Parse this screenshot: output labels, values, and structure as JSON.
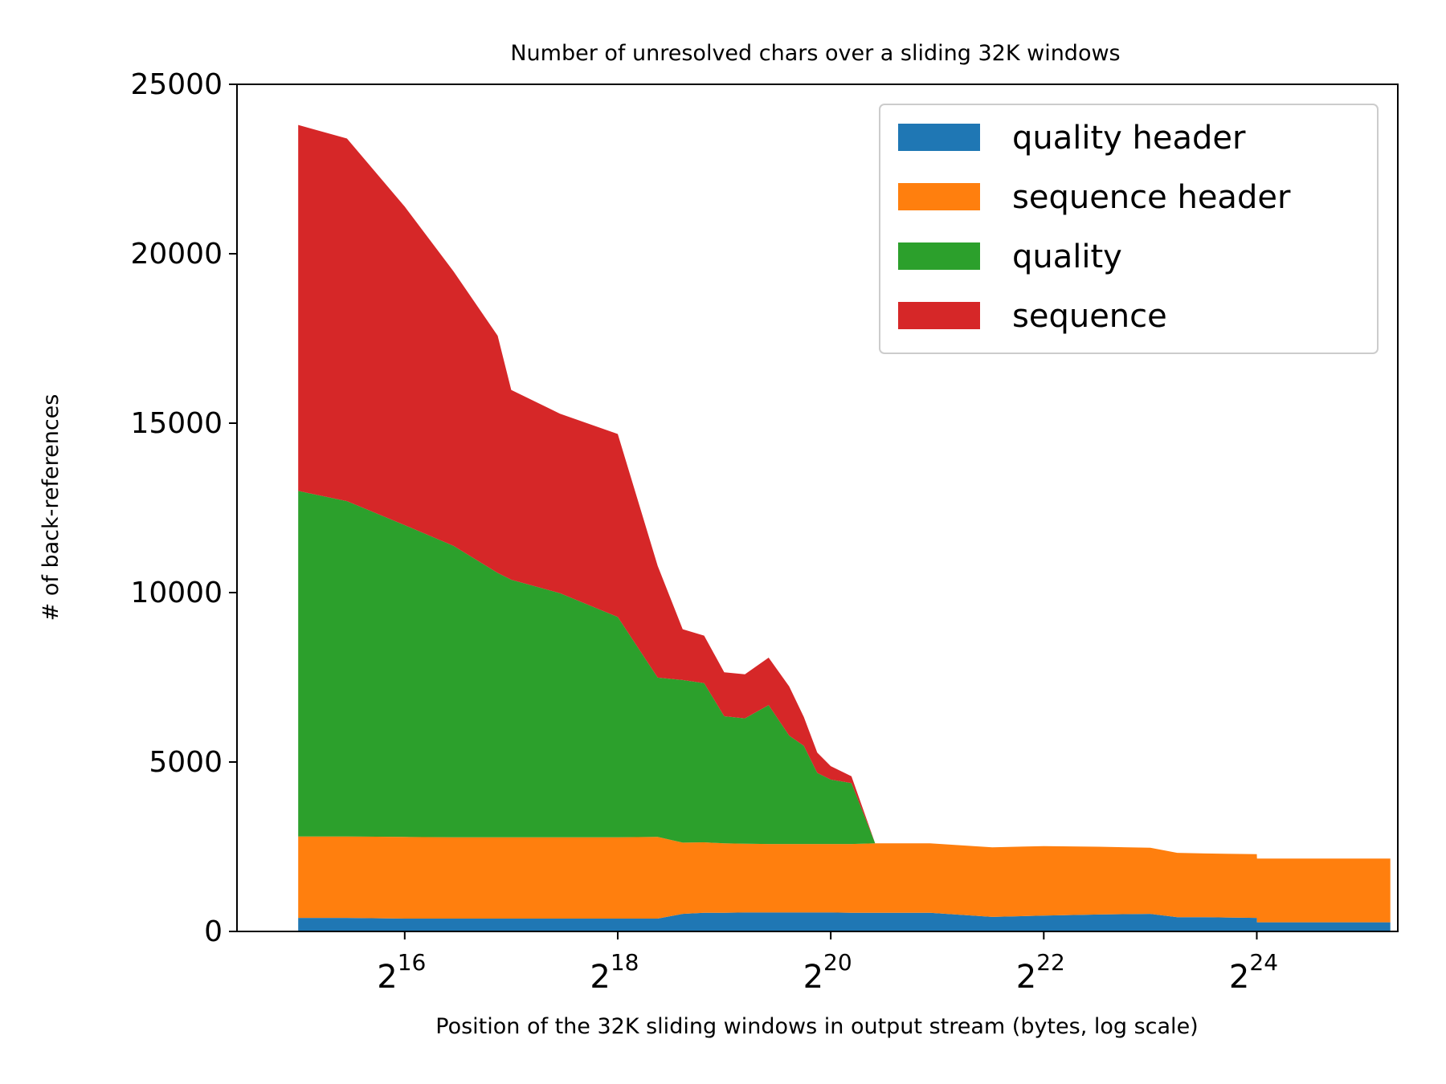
{
  "chart_data": {
    "type": "area",
    "stacked": true,
    "title": "Number of unresolved chars over a sliding 32K windows",
    "xlabel": "Position of the 32K sliding windows in output stream (bytes, log scale)",
    "ylabel": "# of back-references",
    "x_scale": "log2",
    "x_unit": "bytes",
    "xlim": [
      22000,
      42000000
    ],
    "ylim": [
      0,
      25000
    ],
    "x_ticks": [
      {
        "value": 65536,
        "base": "2",
        "exp": "16"
      },
      {
        "value": 262144,
        "base": "2",
        "exp": "18"
      },
      {
        "value": 1048576,
        "base": "2",
        "exp": "20"
      },
      {
        "value": 4194304,
        "base": "2",
        "exp": "22"
      },
      {
        "value": 16777216,
        "base": "2",
        "exp": "24"
      }
    ],
    "y_ticks": [
      0,
      5000,
      10000,
      15000,
      20000,
      25000
    ],
    "y_tick_labels": [
      "0",
      "5000",
      "10000",
      "15000",
      "20000",
      "25000"
    ],
    "grid": false,
    "legend_position": "top-right",
    "x": [
      32768,
      45000,
      65536,
      90000,
      120000,
      131072,
      180000,
      262144,
      340000,
      400000,
      460000,
      524288,
      600000,
      700000,
      800000,
      880000,
      960000,
      1048576,
      1200000,
      1400000,
      2000000,
      3000000,
      4194304,
      6000000,
      8388608,
      10000000,
      12000000,
      16777216,
      16800000,
      25000000,
      40000000
    ],
    "series": [
      {
        "name": "quality header",
        "color": "#1f77b4",
        "values": [
          400,
          400,
          380,
          380,
          380,
          380,
          380,
          380,
          380,
          520,
          550,
          550,
          560,
          560,
          560,
          560,
          560,
          560,
          550,
          550,
          550,
          430,
          470,
          500,
          520,
          420,
          420,
          400,
          270,
          270,
          270
        ]
      },
      {
        "name": "sequence header",
        "color": "#ff7f0e",
        "values": [
          2400,
          2400,
          2410,
          2400,
          2400,
          2400,
          2400,
          2400,
          2410,
          2100,
          2080,
          2050,
          2030,
          2020,
          2020,
          2020,
          2020,
          2020,
          2030,
          2050,
          2050,
          2050,
          2050,
          2000,
          1950,
          1900,
          1880,
          1880,
          1880,
          1880,
          1880
        ]
      },
      {
        "name": "quality",
        "color": "#2ca02c",
        "values": [
          10200,
          9900,
          9200,
          8600,
          7800,
          7600,
          7200,
          6500,
          4700,
          4800,
          4700,
          3750,
          3700,
          4100,
          3200,
          2900,
          2100,
          1900,
          1800,
          0,
          0,
          0,
          0,
          0,
          0,
          0,
          0,
          0,
          0,
          0,
          0
        ]
      },
      {
        "name": "sequence",
        "color": "#d62728",
        "values": [
          10800,
          10700,
          9400,
          8100,
          7000,
          5600,
          5300,
          5400,
          3300,
          1500,
          1400,
          1300,
          1300,
          1400,
          1450,
          850,
          600,
          400,
          200,
          0,
          0,
          0,
          0,
          0,
          0,
          0,
          0,
          0,
          0,
          0,
          0
        ]
      }
    ]
  }
}
